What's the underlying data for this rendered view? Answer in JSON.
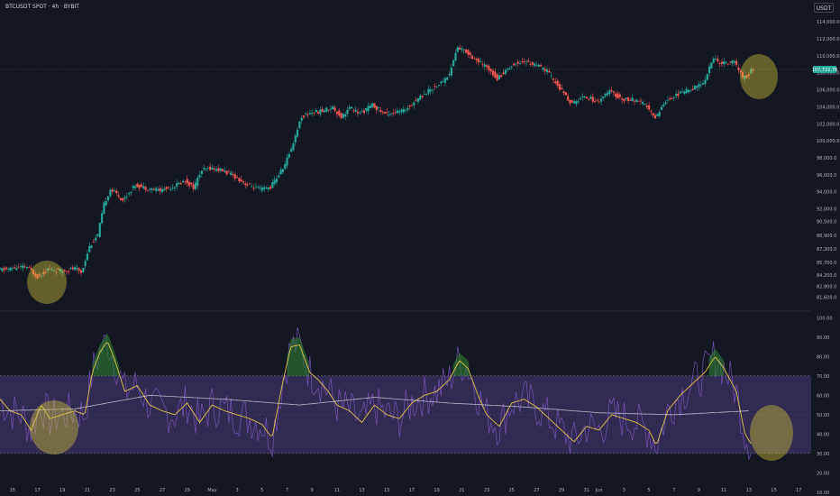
{
  "header": {
    "title": "BTCUSDT SPOT · 4h · BYBIT",
    "currency": "USDT",
    "price_label": "107,722.78"
  },
  "colors": {
    "up": "#26a69a",
    "down": "#ef5350",
    "background": "#131722",
    "rsi_line": "#7e57c2",
    "rsi_ma": "#e2c44a",
    "rsi_long_ma": "#d1d4dc",
    "band_fill": "#4a3d7a",
    "highlight": "#d4c63a"
  },
  "chart_data": [
    {
      "type": "candlestick",
      "title": "BTCUSDT SPOT · 4h · BYBIT",
      "ylim": [
        80500,
        115500
      ],
      "y_ticks": [
        "114,000.0",
        "112,000.0",
        "110,000.0",
        "108,000.0",
        "106,000.0",
        "104,000.0",
        "102,000.0",
        "100,000.0",
        "98,000.0",
        "96,000.0",
        "94,000.0",
        "92,000.0",
        "90,500.0",
        "88,900.0",
        "87,300.0",
        "85,700.0",
        "84,200.0",
        "82,900.0",
        "81,600.0"
      ],
      "y_tick_values": [
        114000,
        112000,
        110000,
        108000,
        106000,
        104000,
        102000,
        100000,
        98000,
        96000,
        94000,
        92000,
        90500,
        88900,
        87300,
        85700,
        84200,
        82900,
        81600
      ],
      "x_labels": [
        "15",
        "17",
        "19",
        "21",
        "23",
        "25",
        "27",
        "29",
        "May",
        "3",
        "5",
        "7",
        "9",
        "11",
        "13",
        "15",
        "17",
        "19",
        "21",
        "23",
        "25",
        "27",
        "29",
        "31",
        "Jun",
        "3",
        "5",
        "7",
        "9",
        "11",
        "13",
        "15",
        "17"
      ],
      "x_label_days": [
        15,
        17,
        19,
        21,
        23,
        25,
        27,
        29,
        31,
        33,
        35,
        37,
        39,
        41,
        43,
        45,
        47,
        49,
        51,
        53,
        55,
        57,
        59,
        61,
        62,
        64,
        66,
        68,
        70,
        72,
        74,
        76,
        78
      ],
      "x_range_days": [
        14,
        79
      ],
      "price_anchors": [
        [
          14.0,
          84800
        ],
        [
          15.2,
          85000
        ],
        [
          16.3,
          85200
        ],
        [
          17.2,
          84000
        ],
        [
          18.0,
          84900
        ],
        [
          19.0,
          84700
        ],
        [
          20.2,
          85000
        ],
        [
          20.7,
          84500
        ],
        [
          21.3,
          87500
        ],
        [
          22.0,
          88900
        ],
        [
          22.5,
          92500
        ],
        [
          23.0,
          94300
        ],
        [
          23.5,
          93800
        ],
        [
          24.0,
          93000
        ],
        [
          25.0,
          94800
        ],
        [
          26.0,
          94400
        ],
        [
          27.0,
          94200
        ],
        [
          28.0,
          94600
        ],
        [
          29.0,
          95300
        ],
        [
          29.7,
          94500
        ],
        [
          30.3,
          96500
        ],
        [
          31.0,
          96800
        ],
        [
          32.0,
          96500
        ],
        [
          33.0,
          95800
        ],
        [
          34.0,
          94800
        ],
        [
          35.0,
          94300
        ],
        [
          35.8,
          94500
        ],
        [
          36.5,
          96000
        ],
        [
          37.0,
          97200
        ],
        [
          37.6,
          99500
        ],
        [
          38.3,
          102800
        ],
        [
          39.0,
          103300
        ],
        [
          40.0,
          103500
        ],
        [
          40.8,
          104000
        ],
        [
          41.5,
          102800
        ],
        [
          42.2,
          103900
        ],
        [
          43.0,
          103200
        ],
        [
          44.0,
          104200
        ],
        [
          45.0,
          103200
        ],
        [
          46.5,
          103500
        ],
        [
          47.5,
          104800
        ],
        [
          48.5,
          105900
        ],
        [
          49.5,
          106800
        ],
        [
          50.2,
          107900
        ],
        [
          50.8,
          111000
        ],
        [
          51.5,
          110500
        ],
        [
          52.5,
          109300
        ],
        [
          53.5,
          108300
        ],
        [
          54.0,
          107300
        ],
        [
          55.0,
          108700
        ],
        [
          56.0,
          109400
        ],
        [
          57.0,
          109000
        ],
        [
          58.0,
          108200
        ],
        [
          59.0,
          106200
        ],
        [
          60.0,
          104300
        ],
        [
          61.0,
          105300
        ],
        [
          62.0,
          104600
        ],
        [
          63.0,
          105800
        ],
        [
          64.0,
          104900
        ],
        [
          65.0,
          104800
        ],
        [
          66.0,
          104100
        ],
        [
          66.6,
          102600
        ],
        [
          67.5,
          104700
        ],
        [
          68.5,
          105500
        ],
        [
          69.5,
          106100
        ],
        [
          70.5,
          106700
        ],
        [
          71.3,
          109700
        ],
        [
          72.0,
          109100
        ],
        [
          73.0,
          109300
        ],
        [
          73.7,
          107400
        ],
        [
          74.2,
          107800
        ],
        [
          74.4,
          108400
        ]
      ]
    },
    {
      "type": "line",
      "title": "",
      "ylim": [
        16,
        102
      ],
      "y_ticks": [
        "100.00",
        "90.00",
        "80.00",
        "70.00",
        "60.00",
        "50.00",
        "40.00",
        "30.00",
        "20.00",
        "10.00"
      ],
      "y_tick_values": [
        100,
        90,
        80,
        70,
        60,
        50,
        40,
        30,
        20,
        10
      ],
      "bands": {
        "upper": 70,
        "middle": 50,
        "lower": 30
      },
      "series": [
        {
          "values_anchors": [
            [
              14,
              58
            ],
            [
              14.8,
              52
            ],
            [
              15.7,
              50
            ],
            [
              16.5,
              42
            ],
            [
              17.3,
              55
            ],
            [
              18.0,
              48
            ],
            [
              19.0,
              50
            ],
            [
              20.0,
              52
            ],
            [
              20.8,
              50
            ],
            [
              21.4,
              72
            ],
            [
              22.0,
              82
            ],
            [
              22.6,
              88
            ],
            [
              23.1,
              80
            ],
            [
              24.0,
              62
            ],
            [
              25.0,
              65
            ],
            [
              26.0,
              55
            ],
            [
              27.0,
              52
            ],
            [
              28.0,
              50
            ],
            [
              29.0,
              56
            ],
            [
              30.0,
              46
            ],
            [
              31.0,
              55
            ],
            [
              32.0,
              52
            ],
            [
              33.0,
              50
            ],
            [
              34.0,
              48
            ],
            [
              35.0,
              45
            ],
            [
              35.8,
              38
            ],
            [
              36.6,
              65
            ],
            [
              37.3,
              85
            ],
            [
              38.0,
              86
            ],
            [
              38.8,
              72
            ],
            [
              39.5,
              68
            ],
            [
              40.3,
              62
            ],
            [
              41.0,
              55
            ],
            [
              42.0,
              52
            ],
            [
              43.0,
              46
            ],
            [
              44.0,
              55
            ],
            [
              45.0,
              50
            ],
            [
              46.0,
              48
            ],
            [
              47.0,
              56
            ],
            [
              48.0,
              60
            ],
            [
              49.0,
              62
            ],
            [
              50.0,
              68
            ],
            [
              50.8,
              78
            ],
            [
              51.5,
              74
            ],
            [
              52.3,
              60
            ],
            [
              53.0,
              50
            ],
            [
              54.0,
              44
            ],
            [
              55.0,
              56
            ],
            [
              56.0,
              58
            ],
            [
              57.0,
              54
            ],
            [
              58.0,
              48
            ],
            [
              59.0,
              42
            ],
            [
              60.0,
              36
            ],
            [
              61.0,
              44
            ],
            [
              62.0,
              42
            ],
            [
              63.0,
              50
            ],
            [
              64.0,
              48
            ],
            [
              65.0,
              46
            ],
            [
              66.0,
              42
            ],
            [
              66.6,
              34
            ],
            [
              67.5,
              52
            ],
            [
              68.5,
              60
            ],
            [
              69.5,
              66
            ],
            [
              70.5,
              72
            ],
            [
              71.3,
              80
            ],
            [
              72.0,
              74
            ],
            [
              73.0,
              62
            ],
            [
              73.7,
              40
            ],
            [
              74.3,
              34
            ]
          ]
        },
        {
          "values_anchors": [
            [
              14,
              52
            ],
            [
              20,
              53
            ],
            [
              26,
              60
            ],
            [
              32,
              58
            ],
            [
              38,
              55
            ],
            [
              44,
              59
            ],
            [
              50,
              56
            ],
            [
              56,
              54
            ],
            [
              62,
              51
            ],
            [
              68,
              50
            ],
            [
              74,
              52
            ]
          ]
        }
      ]
    }
  ]
}
